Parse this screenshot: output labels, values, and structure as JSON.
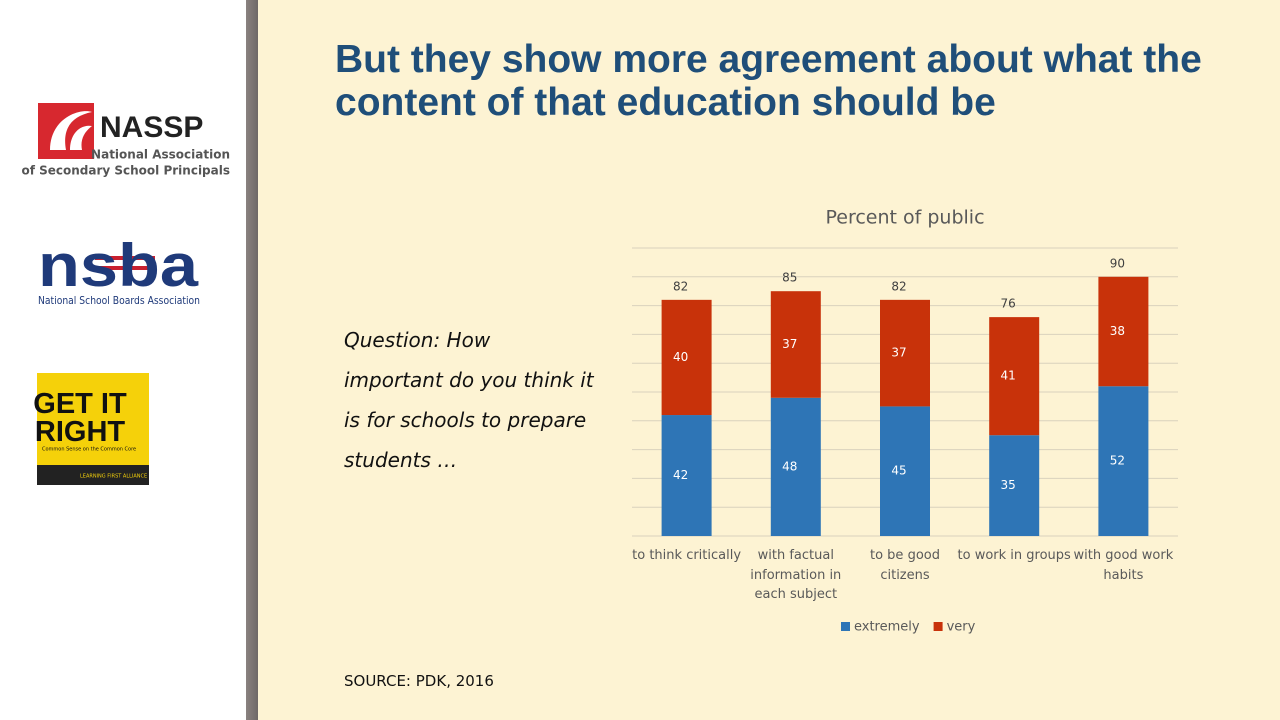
{
  "slide": {
    "title": "But they show more agreement about what the content of that education should be",
    "question": "Question: How important do you think it is for schools to prepare students …",
    "source": "SOURCE: PDK, 2016",
    "logos": {
      "nassp": {
        "name": "NASSP",
        "tagline_lines": [
          "National Association",
          "of Secondary School Principals"
        ]
      },
      "nsba": {
        "name": "nsba",
        "tagline": "National School Boards Association"
      },
      "getitright": {
        "name": "GET IT RIGHT",
        "tagline": "Common Sense on the Common Core",
        "org": "LEARNING FIRST ALLIANCE"
      }
    }
  },
  "chart_data": {
    "type": "stacked_bar",
    "title": "Percent of public",
    "categories": [
      "to think critically",
      "with factual information in each subject",
      "to be good citizens",
      "to work in groups",
      "with good work habits"
    ],
    "series": [
      {
        "name": "extremely",
        "color": "#2e75b6",
        "values": [
          42,
          48,
          45,
          35,
          52
        ]
      },
      {
        "name": "very",
        "color": "#c8320a",
        "values": [
          40,
          37,
          37,
          41,
          38
        ]
      }
    ],
    "totals": [
      82,
      85,
      82,
      76,
      90
    ],
    "ylim": [
      0,
      100
    ],
    "yticks": [
      0,
      10,
      20,
      30,
      40,
      50,
      60,
      70,
      80,
      90,
      100
    ],
    "grid": true,
    "legend": "bottom"
  }
}
